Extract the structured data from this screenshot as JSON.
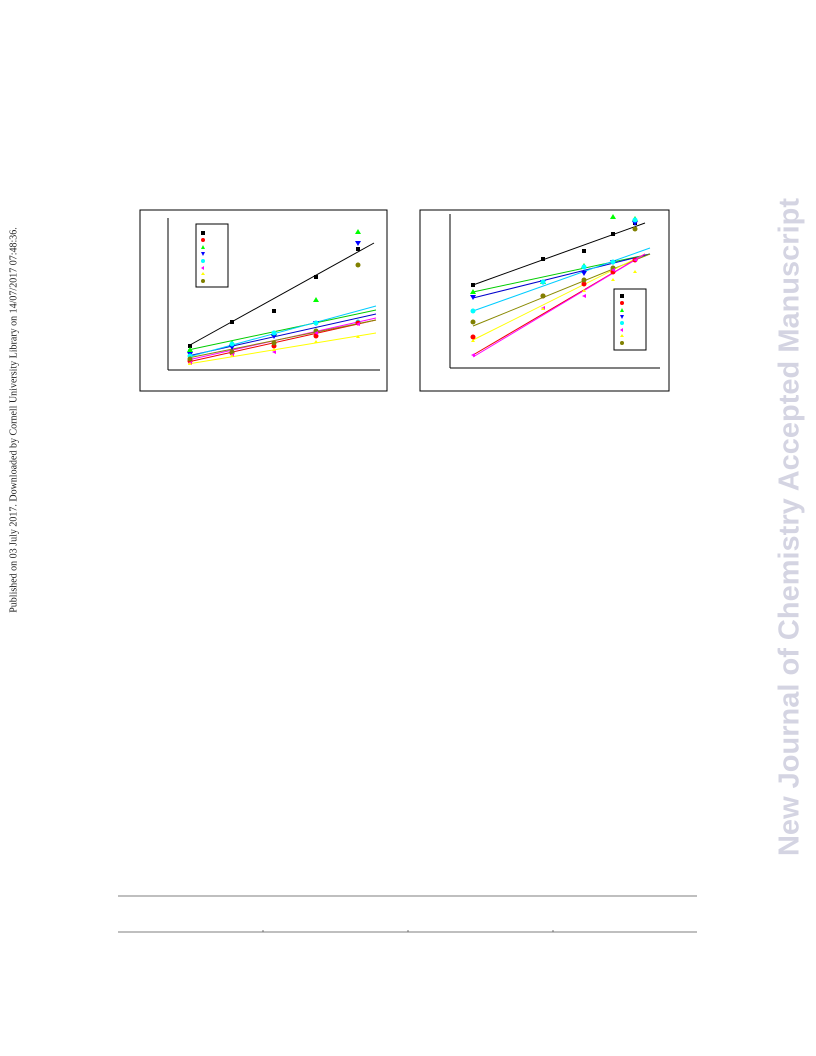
{
  "side_note": "Published on 03 July 2017. Downloaded by Cornell University Library on 14/07/2017 07:48:36.",
  "watermark": "New Journal of Chemistry Accepted Manuscript"
}
